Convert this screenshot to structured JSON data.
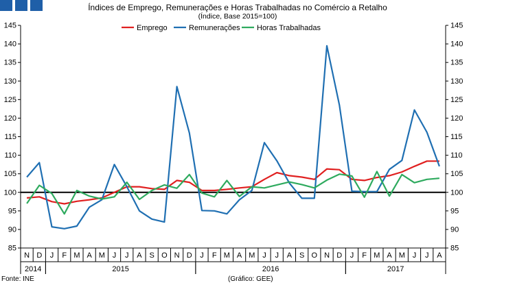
{
  "branding": {
    "logo_color": "#1f5fa8"
  },
  "footer": {
    "source": "Fonte: INE",
    "credit": "(Gráfico: GEE)"
  },
  "chart_data": {
    "type": "line",
    "title": "Índices de Emprego, Remunerações e Horas Trabalhadas no Comércio a Retalho",
    "subtitle": "(Índice, Base 2015=100)",
    "ylim": [
      85,
      145
    ],
    "yticks": [
      85,
      90,
      95,
      100,
      105,
      110,
      115,
      120,
      125,
      130,
      135,
      140,
      145
    ],
    "reference_line": 100,
    "months": [
      "N",
      "D",
      "J",
      "F",
      "M",
      "A",
      "M",
      "J",
      "J",
      "A",
      "S",
      "O",
      "N",
      "D",
      "J",
      "F",
      "M",
      "A",
      "M",
      "J",
      "J",
      "A",
      "S",
      "O",
      "N",
      "D",
      "J",
      "F",
      "M",
      "A",
      "M",
      "J",
      "J",
      "A"
    ],
    "years": [
      {
        "label": "2014",
        "start": 0,
        "end": 1
      },
      {
        "label": "2015",
        "start": 2,
        "end": 13
      },
      {
        "label": "2016",
        "start": 14,
        "end": 25
      },
      {
        "label": "2017",
        "start": 26,
        "end": 33
      }
    ],
    "series": [
      {
        "name": "Emprego",
        "color": "#e02020",
        "values": [
          98.5,
          98.8,
          97.5,
          96.9,
          97.6,
          98,
          98.5,
          100,
          101.5,
          101.5,
          101,
          100.8,
          103.2,
          102.7,
          100.5,
          100.5,
          100.8,
          101.2,
          101.5,
          103.5,
          105.3,
          104.5,
          104.1,
          103.5,
          106.3,
          106.1,
          103.5,
          103.2,
          104,
          104.5,
          105.5,
          107,
          108.4,
          108.4
        ]
      },
      {
        "name": "Remunerações",
        "color": "#1f6fb2",
        "values": [
          104.1,
          108,
          90.7,
          90.2,
          90.9,
          96,
          98,
          107.5,
          101.5,
          95,
          92.8,
          92,
          128.5,
          116,
          95.1,
          95,
          94.2,
          98,
          100.5,
          113.4,
          108.5,
          102.5,
          98.4,
          98.4,
          139.5,
          123.5,
          100.3,
          100.2,
          100.2,
          106.2,
          108.6,
          122.2,
          116.2,
          107
        ]
      },
      {
        "name": "Horas Trabalhadas",
        "color": "#2eaa5e",
        "values": [
          97,
          101.9,
          99.7,
          94.2,
          100.5,
          99,
          98.2,
          98.8,
          102.7,
          98.1,
          100.5,
          102,
          101.1,
          104.8,
          99.8,
          98.8,
          103.2,
          98.9,
          101.5,
          101.2,
          102,
          102.8,
          102.1,
          101.2,
          103.3,
          104.9,
          104.4,
          98.7,
          105.6,
          99,
          104.8,
          102.6,
          103.5,
          103.8
        ]
      }
    ]
  }
}
